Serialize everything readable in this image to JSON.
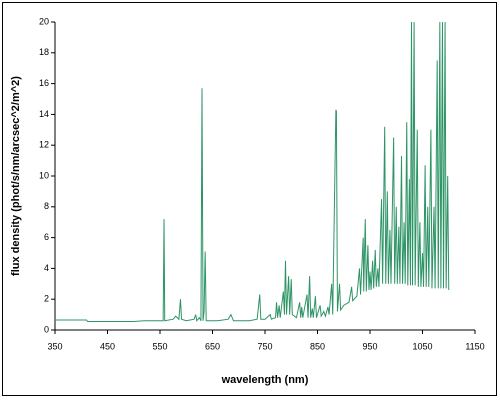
{
  "chart_data": {
    "type": "line",
    "xlabel": "wavelength (nm)",
    "ylabel": "flux density (phot/s/nm/arcsec^2/m^2)",
    "color": "#2e9466",
    "xlim": [
      350,
      1150
    ],
    "xticks": [
      350,
      450,
      550,
      650,
      750,
      850,
      950,
      1050,
      1150
    ],
    "ylim": [
      0,
      20
    ],
    "yticks": [
      0,
      2,
      4,
      6,
      8,
      10,
      12,
      14,
      16,
      18,
      20
    ],
    "x": [
      350,
      410,
      412,
      500,
      520,
      540,
      556,
      557.7,
      559,
      575,
      580,
      586,
      589,
      591,
      600,
      615,
      618,
      620,
      625,
      628,
      630,
      632,
      634,
      636,
      638,
      660,
      680,
      685,
      690,
      720,
      735,
      740,
      742,
      750,
      760,
      762,
      770,
      772,
      774,
      777,
      779,
      785,
      787,
      789,
      791,
      795,
      797,
      800,
      802,
      810,
      816,
      818,
      820,
      822,
      830,
      832,
      835,
      837,
      840,
      842,
      846,
      848,
      855,
      857,
      862,
      865,
      870,
      872,
      877,
      879,
      885,
      886,
      888,
      892,
      894,
      900,
      910,
      915,
      917,
      925,
      930,
      932,
      937,
      938,
      941,
      943,
      946,
      948,
      950,
      952,
      955,
      957,
      960,
      962,
      965,
      967,
      972,
      974,
      978,
      980,
      983,
      985,
      988,
      990,
      995,
      997,
      1000,
      1002,
      1005,
      1007,
      1010,
      1012,
      1015,
      1017,
      1020,
      1022,
      1025,
      1027,
      1029,
      1031,
      1034,
      1036,
      1040,
      1042,
      1045,
      1047,
      1050,
      1052,
      1055,
      1057,
      1060,
      1062,
      1066,
      1068,
      1072,
      1074,
      1078,
      1080,
      1083,
      1085,
      1088,
      1090,
      1093,
      1095,
      1098,
      1100
    ],
    "values": [
      0.65,
      0.65,
      0.55,
      0.55,
      0.6,
      0.6,
      0.6,
      7.2,
      0.6,
      0.7,
      0.9,
      0.7,
      2.0,
      0.7,
      0.6,
      0.7,
      1.0,
      0.6,
      0.8,
      0.6,
      15.7,
      0.6,
      1.2,
      5.1,
      0.6,
      0.6,
      0.7,
      1.0,
      0.6,
      0.6,
      0.7,
      2.3,
      0.7,
      0.7,
      1.0,
      0.7,
      0.8,
      1.8,
      0.8,
      1.6,
      0.8,
      2.5,
      1.0,
      4.5,
      1.0,
      3.5,
      1.0,
      3.3,
      1.0,
      0.8,
      1.8,
      0.8,
      1.5,
      0.8,
      2.3,
      0.8,
      3.5,
      0.8,
      1.4,
      0.8,
      2.2,
      0.8,
      1.6,
      0.9,
      1.2,
      0.9,
      1.5,
      1.0,
      3.0,
      1.0,
      14.3,
      14.2,
      1.2,
      3.0,
      1.3,
      1.6,
      1.8,
      2.8,
      1.9,
      2.2,
      4.0,
      2.3,
      6.0,
      2.5,
      7.2,
      2.5,
      5.5,
      2.6,
      3.8,
      2.6,
      4.5,
      2.7,
      5.2,
      2.8,
      4.0,
      2.8,
      8.5,
      3.0,
      13.2,
      3.0,
      9.0,
      3.0,
      6.5,
      3.0,
      12.5,
      3.0,
      8.0,
      3.0,
      6.7,
      3.0,
      11.3,
      3.0,
      7.0,
      3.0,
      13.5,
      2.9,
      9.8,
      2.9,
      20,
      2.9,
      20,
      2.9,
      13.0,
      2.8,
      7.0,
      2.8,
      5.0,
      2.8,
      10.7,
      2.8,
      8.0,
      2.8,
      13.0,
      2.7,
      8.0,
      2.7,
      17.5,
      2.7,
      20,
      2.7,
      20,
      2.7,
      20,
      2.7,
      10.0,
      2.6
    ]
  }
}
